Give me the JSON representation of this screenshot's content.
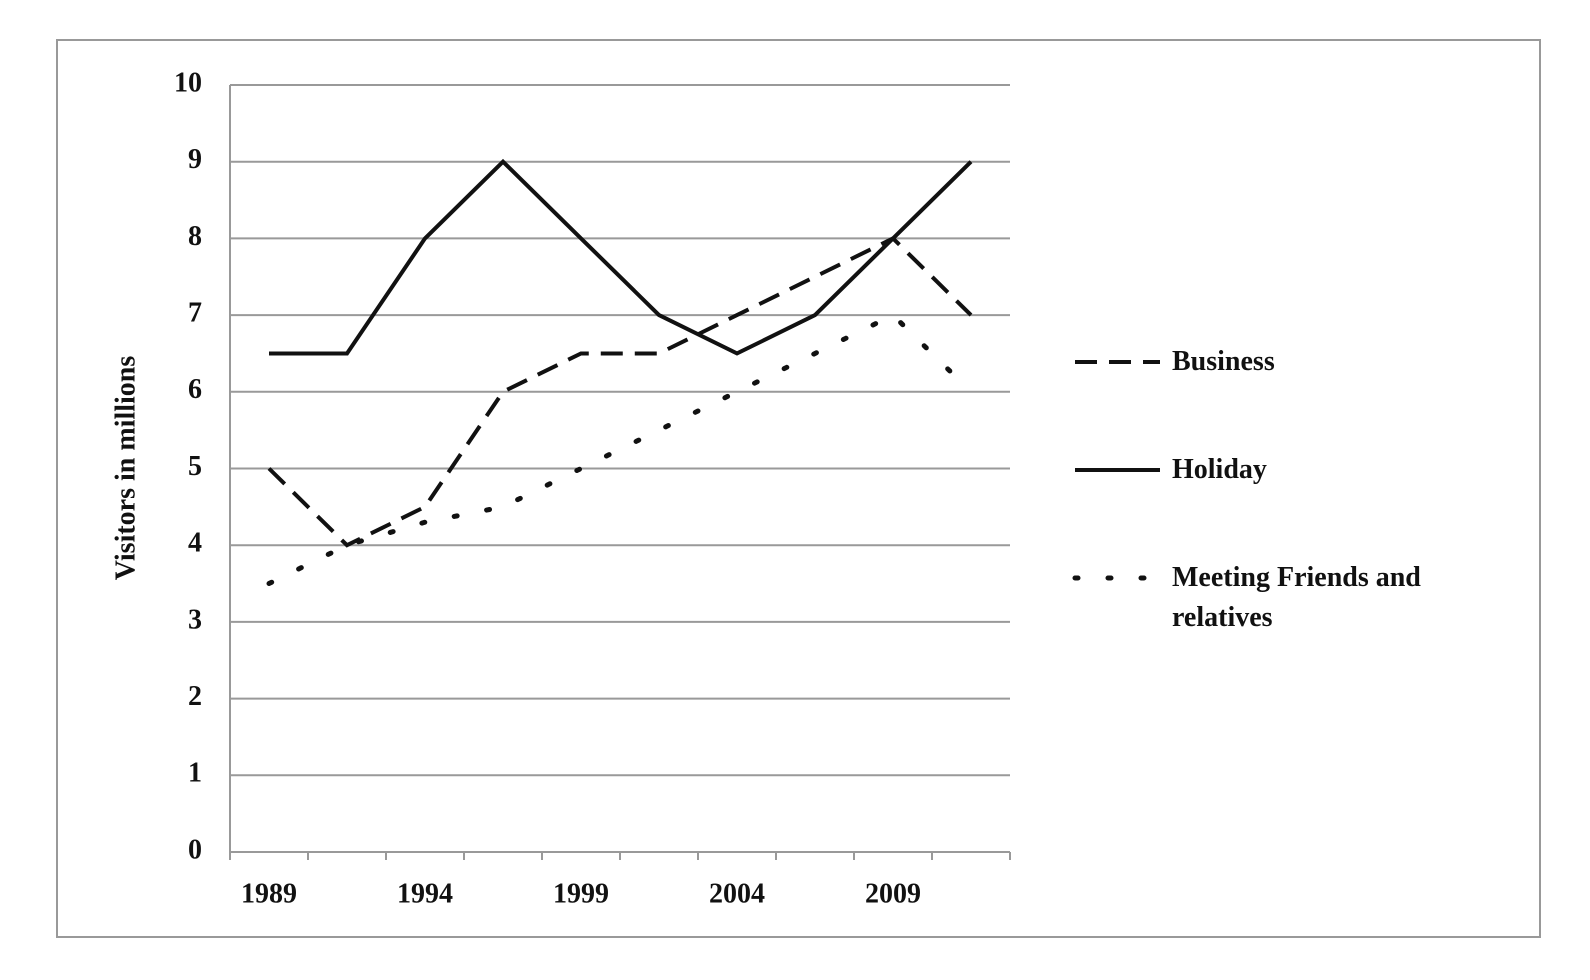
{
  "chart_data": {
    "type": "line",
    "y_label": "Visitors in millions",
    "categories": [
      "1989",
      null,
      "1994",
      null,
      "1999",
      null,
      "2004",
      null,
      "2009",
      null
    ],
    "series": [
      {
        "name": "Business",
        "color": "#111111",
        "style": "dashed",
        "values": [
          5,
          4,
          4.5,
          6,
          6.5,
          6.5,
          7,
          7.5,
          8,
          7
        ]
      },
      {
        "name": "Holiday",
        "color": "#111111",
        "style": "solid",
        "values": [
          6.5,
          6.5,
          8,
          9,
          8,
          7,
          6.5,
          7,
          8,
          9
        ]
      },
      {
        "name": "Meeting Friends and relatives",
        "color": "#111111",
        "style": "dotted",
        "values": [
          3.5,
          4,
          4.3,
          4.5,
          5,
          5.5,
          6,
          6.5,
          7,
          6
        ]
      }
    ],
    "ylim": [
      0,
      10
    ],
    "yticks": [
      0,
      1,
      2,
      3,
      4,
      5,
      6,
      7,
      8,
      9,
      10
    ],
    "grid": true,
    "legend": "right"
  }
}
